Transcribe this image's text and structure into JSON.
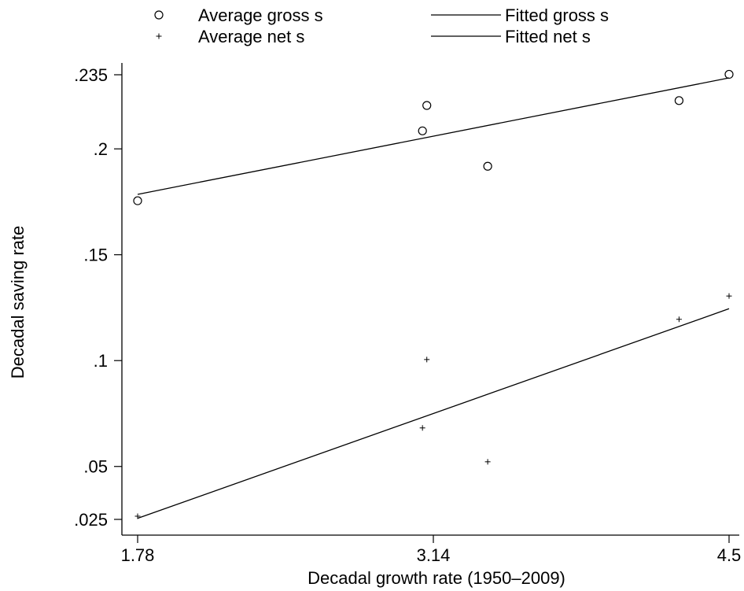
{
  "chart_data": {
    "type": "scatter",
    "xlabel": "Decadal growth rate (1950–2009)",
    "ylabel": "Decadal saving rate",
    "xlim": [
      1.78,
      4.5
    ],
    "ylim": [
      0.025,
      0.235
    ],
    "xticks": [
      {
        "value": 1.78,
        "label": "1.78"
      },
      {
        "value": 3.14,
        "label": "3.14"
      },
      {
        "value": 4.5,
        "label": "4.5"
      }
    ],
    "yticks": [
      {
        "value": 0.025,
        "label": ".025"
      },
      {
        "value": 0.05,
        "label": ".05"
      },
      {
        "value": 0.1,
        "label": ".1"
      },
      {
        "value": 0.15,
        "label": ".15"
      },
      {
        "value": 0.2,
        "label": ".2"
      },
      {
        "value": 0.235,
        "label": ".235"
      }
    ],
    "grid": false,
    "legend_position": "top",
    "series": [
      {
        "name": "Average gross s",
        "kind": "points",
        "marker": "circle",
        "points": [
          [
            1.78,
            0.1755
          ],
          [
            3.09,
            0.2085
          ],
          [
            3.11,
            0.2205
          ],
          [
            3.39,
            0.1918
          ],
          [
            4.27,
            0.2228
          ],
          [
            4.5,
            0.2352
          ]
        ]
      },
      {
        "name": "Average net s",
        "kind": "points",
        "marker": "plus",
        "points": [
          [
            1.78,
            0.0265
          ],
          [
            3.09,
            0.0682
          ],
          [
            3.11,
            0.1005
          ],
          [
            3.39,
            0.0522
          ],
          [
            4.27,
            0.1195
          ],
          [
            4.5,
            0.1305
          ]
        ]
      },
      {
        "name": "Fitted gross s",
        "kind": "line",
        "points": [
          [
            1.78,
            0.1785
          ],
          [
            4.5,
            0.2335
          ]
        ]
      },
      {
        "name": "Fitted net s",
        "kind": "line",
        "points": [
          [
            1.78,
            0.0255
          ],
          [
            4.5,
            0.1245
          ]
        ]
      }
    ]
  }
}
